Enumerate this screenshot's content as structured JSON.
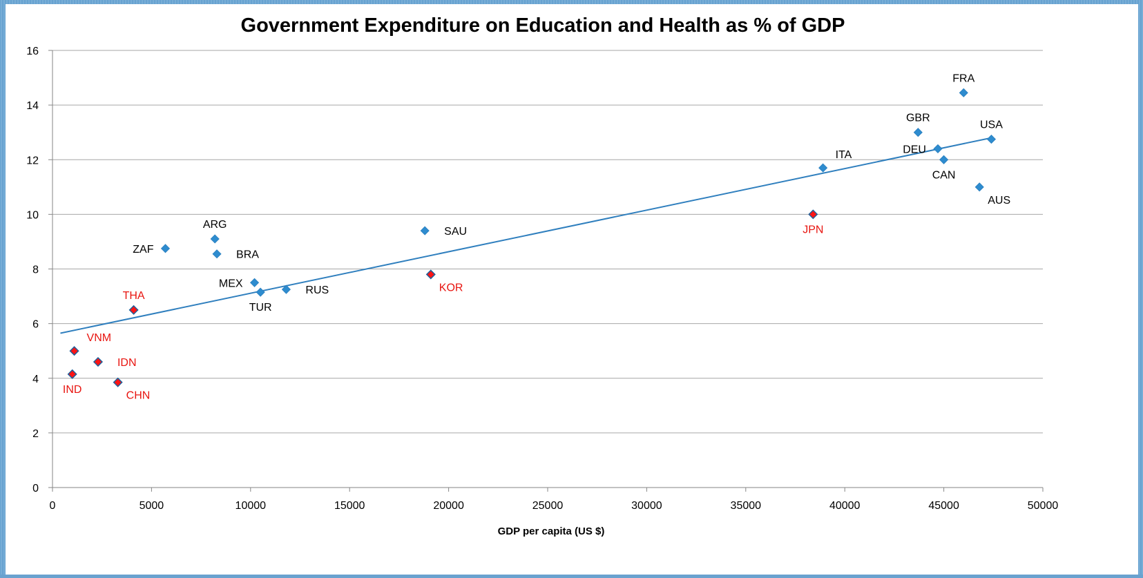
{
  "chart_data": {
    "type": "scatter",
    "title": "Government Expenditure on Education and Health as % of GDP",
    "xlabel": "GDP per capita (US $)",
    "ylabel": "",
    "xlim": [
      0,
      50000
    ],
    "ylim": [
      0,
      16
    ],
    "x_ticks": [
      0,
      5000,
      10000,
      15000,
      20000,
      25000,
      30000,
      35000,
      40000,
      45000,
      50000
    ],
    "y_ticks": [
      0,
      2,
      4,
      6,
      8,
      10,
      12,
      14,
      16
    ],
    "grid": "horizontal",
    "legend": "none",
    "colors": {
      "blue": "#2e8ccf",
      "red": "#ff1414",
      "trendline": "#2f7fbe",
      "red_label": "#e8140f",
      "gridline": "#a6a6a6"
    },
    "trendline": {
      "x": [
        400,
        47400
      ],
      "y": [
        5.65,
        12.8
      ]
    },
    "points": [
      {
        "label": "FRA",
        "x": 46000,
        "y": 14.45,
        "color": "blue",
        "pos": "n"
      },
      {
        "label": "GBR",
        "x": 43700,
        "y": 13.0,
        "color": "blue",
        "pos": "n"
      },
      {
        "label": "USA",
        "x": 47400,
        "y": 12.75,
        "color": "blue",
        "pos": "n"
      },
      {
        "label": "DEU",
        "x": 44700,
        "y": 12.4,
        "color": "blue",
        "pos": "w"
      },
      {
        "label": "CAN",
        "x": 45000,
        "y": 12.0,
        "color": "blue",
        "pos": "s"
      },
      {
        "label": "ITA",
        "x": 38900,
        "y": 11.7,
        "color": "blue",
        "pos": "ne"
      },
      {
        "label": "AUS",
        "x": 46800,
        "y": 11.0,
        "color": "blue",
        "pos": "se"
      },
      {
        "label": "JPN",
        "x": 38400,
        "y": 10.0,
        "color": "red",
        "pos": "s"
      },
      {
        "label": "SAU",
        "x": 18800,
        "y": 9.4,
        "color": "blue",
        "pos": "e"
      },
      {
        "label": "ARG",
        "x": 8200,
        "y": 9.1,
        "color": "blue",
        "pos": "n"
      },
      {
        "label": "ZAF",
        "x": 5700,
        "y": 8.75,
        "color": "blue",
        "pos": "w"
      },
      {
        "label": "BRA",
        "x": 8300,
        "y": 8.55,
        "color": "blue",
        "pos": "e"
      },
      {
        "label": "KOR",
        "x": 19100,
        "y": 7.8,
        "color": "red",
        "pos": "se"
      },
      {
        "label": "MEX",
        "x": 10200,
        "y": 7.5,
        "color": "blue",
        "pos": "w"
      },
      {
        "label": "RUS",
        "x": 11800,
        "y": 7.25,
        "color": "blue",
        "pos": "e"
      },
      {
        "label": "TUR",
        "x": 10500,
        "y": 7.15,
        "color": "blue",
        "pos": "s"
      },
      {
        "label": "THA",
        "x": 4100,
        "y": 6.5,
        "color": "red",
        "pos": "n"
      },
      {
        "label": "VNM",
        "x": 1100,
        "y": 5.0,
        "color": "red",
        "pos": "ne"
      },
      {
        "label": "IDN",
        "x": 2300,
        "y": 4.6,
        "color": "red",
        "pos": "e"
      },
      {
        "label": "IND",
        "x": 1000,
        "y": 4.15,
        "color": "red",
        "pos": "s"
      },
      {
        "label": "CHN",
        "x": 3300,
        "y": 3.85,
        "color": "red",
        "pos": "se"
      }
    ]
  }
}
